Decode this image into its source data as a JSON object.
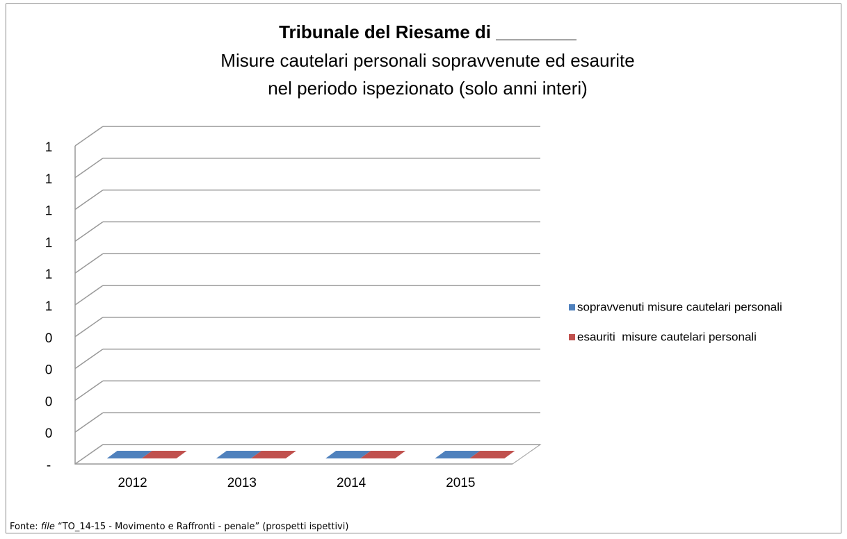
{
  "chart_data": {
    "type": "bar3d",
    "title": "Tribunale del Riesame di ________",
    "subtitle": [
      "Misure cautelari personali sopravvenute ed esaurite",
      "nel periodo ispezionato (solo anni interi)"
    ],
    "categories": [
      "2012",
      "2013",
      "2014",
      "2015"
    ],
    "series": [
      {
        "name": "sopravvenuti misure cautelari personali",
        "color": "#4f81bd",
        "values": [
          0,
          0,
          0,
          0
        ]
      },
      {
        "name": "esauriti  misure cautelari personali",
        "color": "#c0504d",
        "values": [
          0,
          0,
          0,
          0
        ]
      }
    ],
    "ylim": [
      0,
      1
    ],
    "yticks": [
      {
        "value": 0,
        "label": "-"
      },
      {
        "value": 0.1,
        "label": "0"
      },
      {
        "value": 0.2,
        "label": "0"
      },
      {
        "value": 0.3,
        "label": "0"
      },
      {
        "value": 0.4,
        "label": "0"
      },
      {
        "value": 0.5,
        "label": "1"
      },
      {
        "value": 0.6,
        "label": "1"
      },
      {
        "value": 0.7,
        "label": "1"
      },
      {
        "value": 0.8,
        "label": "1"
      },
      {
        "value": 0.9,
        "label": "1"
      },
      1
    ],
    "grid": true,
    "legend": "right",
    "source": [
      "Fonte: ",
      "file",
      " “TO_14-15 - Movimento e Raffronti - penale” (prospetti ispettivi)"
    ]
  }
}
